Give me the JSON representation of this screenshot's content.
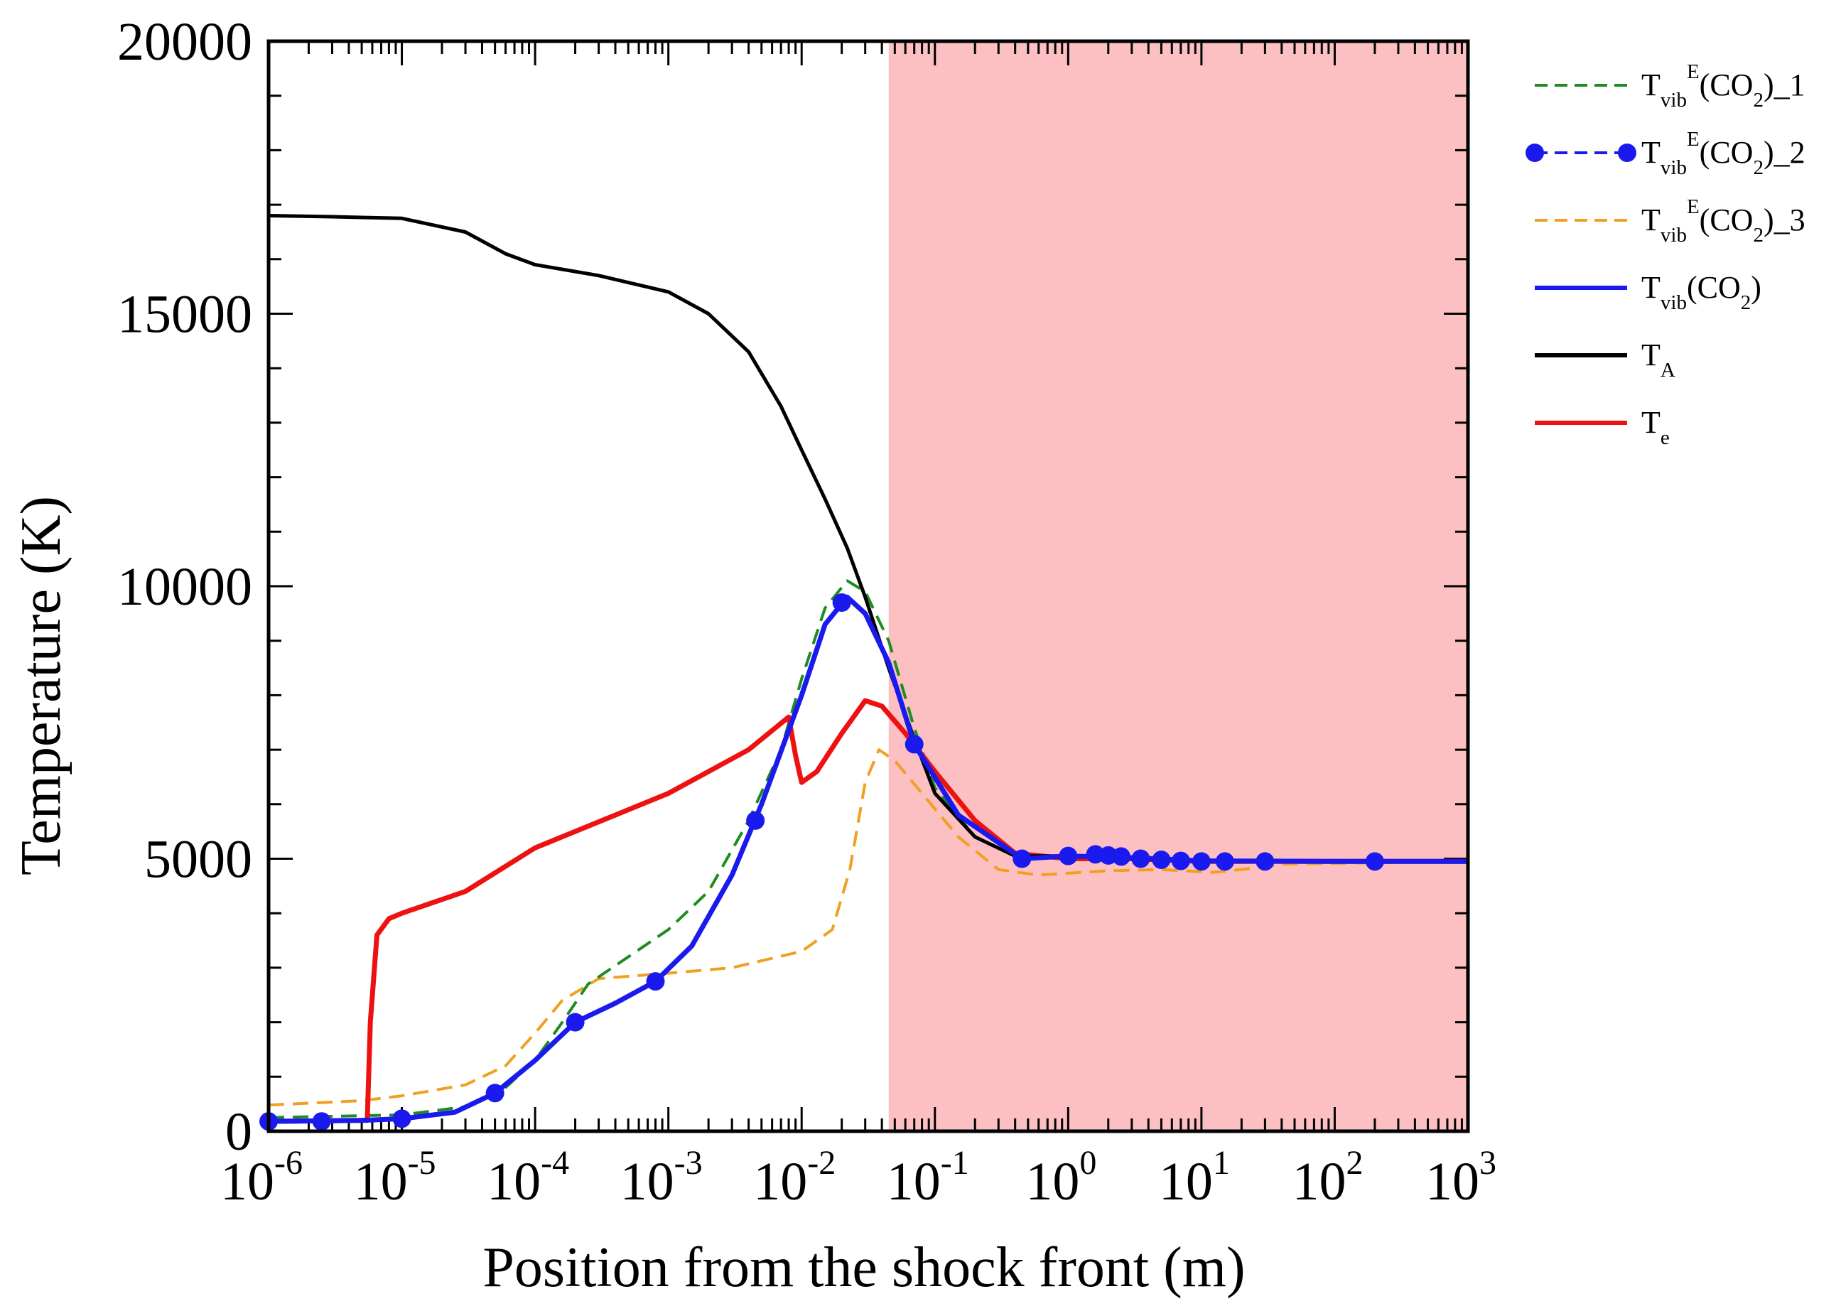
{
  "chart_data": {
    "type": "line",
    "title": "",
    "xlabel": "Position from the shock front (m)",
    "ylabel": "Temperature (K)",
    "xscale": "log",
    "xlim": [
      1e-06,
      1000
    ],
    "ylim": [
      0,
      20000
    ],
    "x_tick_labels": [
      {
        "base": "10",
        "exp": "-6"
      },
      {
        "base": "10",
        "exp": "-5"
      },
      {
        "base": "10",
        "exp": "-4"
      },
      {
        "base": "10",
        "exp": "-3"
      },
      {
        "base": "10",
        "exp": "-2"
      },
      {
        "base": "10",
        "exp": "-1"
      },
      {
        "base": "10",
        "exp": "0"
      },
      {
        "base": "10",
        "exp": "1"
      },
      {
        "base": "10",
        "exp": "2"
      },
      {
        "base": "10",
        "exp": "3"
      }
    ],
    "y_tick_labels": [
      "0",
      "5000",
      "10000",
      "15000",
      "20000"
    ],
    "shaded_region": {
      "x_from": 0.045,
      "x_to": 1000,
      "color": "#fcc0c2"
    },
    "legend_position": "right, outside plot",
    "series": [
      {
        "id": "tvibE1",
        "name": "T_vib^E(CO2)_1",
        "legend": {
          "main": "T",
          "sub": "vib",
          "sup": "E",
          "rest": [
            {
              "t": "(CO"
            },
            {
              "t": "2",
              "sub": true
            },
            {
              "t": ")_1"
            }
          ]
        },
        "color": "#1e8c1e",
        "style": "dashed",
        "markers": false,
        "points": [
          [
            1e-06,
            250
          ],
          [
            1e-05,
            300
          ],
          [
            3e-05,
            450
          ],
          [
            6e-05,
            800
          ],
          [
            0.0001,
            1300
          ],
          [
            0.00016,
            2000
          ],
          [
            0.00025,
            2700
          ],
          [
            0.0005,
            3200
          ],
          [
            0.001,
            3700
          ],
          [
            0.002,
            4400
          ],
          [
            0.004,
            5700
          ],
          [
            0.007,
            7000
          ],
          [
            0.01,
            8300
          ],
          [
            0.015,
            9600
          ],
          [
            0.022,
            10100
          ],
          [
            0.03,
            9900
          ],
          [
            0.045,
            9000
          ],
          [
            0.07,
            7400
          ],
          [
            0.1,
            6300
          ],
          [
            0.2,
            5400
          ],
          [
            0.4,
            5050
          ],
          [
            1,
            5050
          ],
          [
            3,
            5000
          ],
          [
            10,
            4980
          ],
          [
            100,
            4950
          ],
          [
            1000,
            4950
          ]
        ]
      },
      {
        "id": "tvibE2",
        "name": "T_vib^E(CO2)_2",
        "legend": {
          "main": "T",
          "sub": "vib",
          "sup": "E",
          "rest": [
            {
              "t": "(CO"
            },
            {
              "t": "2",
              "sub": true
            },
            {
              "t": ")_2"
            }
          ]
        },
        "color": "#1a1aee",
        "style": "dashed",
        "markers": true,
        "points": [
          [
            1e-06,
            180
          ],
          [
            2.5e-06,
            180
          ],
          [
            1e-05,
            230
          ],
          [
            5e-05,
            700
          ],
          [
            0.0002,
            2000
          ],
          [
            0.0008,
            2750
          ],
          [
            0.0045,
            5700
          ],
          [
            0.02,
            9700
          ],
          [
            0.07,
            7100
          ],
          [
            0.45,
            5000
          ],
          [
            1,
            5050
          ],
          [
            1.6,
            5080
          ],
          [
            2,
            5060
          ],
          [
            2.5,
            5040
          ],
          [
            3.5,
            5000
          ],
          [
            5,
            4980
          ],
          [
            7,
            4960
          ],
          [
            10,
            4950
          ],
          [
            15,
            4950
          ],
          [
            30,
            4950
          ],
          [
            200,
            4950
          ]
        ]
      },
      {
        "id": "tvibE3",
        "name": "T_vib^E(CO2)_3",
        "legend": {
          "main": "T",
          "sub": "vib",
          "sup": "E",
          "rest": [
            {
              "t": "(CO"
            },
            {
              "t": "2",
              "sub": true
            },
            {
              "t": ")_3"
            }
          ]
        },
        "color": "#f0a020",
        "style": "dashed",
        "markers": false,
        "points": [
          [
            1e-06,
            480
          ],
          [
            5e-06,
            560
          ],
          [
            1e-05,
            650
          ],
          [
            3e-05,
            850
          ],
          [
            6e-05,
            1200
          ],
          [
            0.0001,
            1800
          ],
          [
            0.00016,
            2400
          ],
          [
            0.0003,
            2800
          ],
          [
            0.001,
            2900
          ],
          [
            0.003,
            3000
          ],
          [
            0.01,
            3300
          ],
          [
            0.017,
            3700
          ],
          [
            0.023,
            4800
          ],
          [
            0.03,
            6400
          ],
          [
            0.038,
            7000
          ],
          [
            0.05,
            6800
          ],
          [
            0.08,
            6200
          ],
          [
            0.15,
            5400
          ],
          [
            0.3,
            4800
          ],
          [
            0.6,
            4700
          ],
          [
            2,
            4780
          ],
          [
            5,
            4800
          ],
          [
            12,
            4750
          ],
          [
            20,
            4800
          ],
          [
            40,
            4900
          ],
          [
            1000,
            4950
          ]
        ]
      },
      {
        "id": "tvib",
        "name": "T_vib(CO2)",
        "legend": {
          "main": "T",
          "sub": "vib",
          "sup": "",
          "rest": [
            {
              "t": "(CO"
            },
            {
              "t": "2",
              "sub": true
            },
            {
              "t": ")"
            }
          ]
        },
        "color": "#1a1aee",
        "style": "solid",
        "markers": false,
        "points": [
          [
            1e-06,
            180
          ],
          [
            5e-06,
            200
          ],
          [
            1e-05,
            230
          ],
          [
            2.5e-05,
            350
          ],
          [
            5e-05,
            700
          ],
          [
            0.0001,
            1300
          ],
          [
            0.0002,
            2000
          ],
          [
            0.0004,
            2350
          ],
          [
            0.0008,
            2750
          ],
          [
            0.0015,
            3400
          ],
          [
            0.003,
            4700
          ],
          [
            0.005,
            6000
          ],
          [
            0.01,
            8000
          ],
          [
            0.015,
            9300
          ],
          [
            0.022,
            9800
          ],
          [
            0.03,
            9500
          ],
          [
            0.045,
            8600
          ],
          [
            0.07,
            7100
          ],
          [
            0.15,
            5800
          ],
          [
            0.45,
            5000
          ],
          [
            1,
            5050
          ],
          [
            3,
            5020
          ],
          [
            10,
            4960
          ],
          [
            100,
            4950
          ],
          [
            1000,
            4950
          ]
        ]
      },
      {
        "id": "ta",
        "name": "T_A",
        "legend": {
          "main": "T",
          "sub": "A",
          "sup": "",
          "rest": []
        },
        "color": "#000000",
        "style": "solid",
        "markers": false,
        "points": [
          [
            1e-06,
            16800
          ],
          [
            3e-06,
            16780
          ],
          [
            1e-05,
            16750
          ],
          [
            3e-05,
            16500
          ],
          [
            6e-05,
            16100
          ],
          [
            0.0001,
            15900
          ],
          [
            0.0003,
            15700
          ],
          [
            0.001,
            15400
          ],
          [
            0.002,
            15000
          ],
          [
            0.004,
            14300
          ],
          [
            0.007,
            13300
          ],
          [
            0.01,
            12500
          ],
          [
            0.015,
            11600
          ],
          [
            0.022,
            10700
          ],
          [
            0.03,
            9800
          ],
          [
            0.045,
            8500
          ],
          [
            0.07,
            7200
          ],
          [
            0.1,
            6200
          ],
          [
            0.2,
            5400
          ],
          [
            0.4,
            5050
          ],
          [
            1,
            5050
          ],
          [
            3,
            5000
          ],
          [
            10,
            4950
          ],
          [
            1000,
            4950
          ]
        ]
      },
      {
        "id": "te",
        "name": "T_e",
        "legend": {
          "main": "T",
          "sub": "e",
          "sup": "",
          "rest": []
        },
        "color": "#ee1111",
        "style": "solid",
        "markers": false,
        "points": [
          [
            1e-06,
            180
          ],
          [
            5.5e-06,
            200
          ],
          [
            5.8e-06,
            2000
          ],
          [
            6.5e-06,
            3600
          ],
          [
            8e-06,
            3900
          ],
          [
            1e-05,
            4000
          ],
          [
            3e-05,
            4400
          ],
          [
            0.0001,
            5200
          ],
          [
            0.001,
            6200
          ],
          [
            0.004,
            7000
          ],
          [
            0.008,
            7600
          ],
          [
            0.009,
            6900
          ],
          [
            0.01,
            6400
          ],
          [
            0.013,
            6600
          ],
          [
            0.02,
            7300
          ],
          [
            0.03,
            7900
          ],
          [
            0.04,
            7800
          ],
          [
            0.06,
            7300
          ],
          [
            0.1,
            6600
          ],
          [
            0.2,
            5700
          ],
          [
            0.4,
            5100
          ],
          [
            1,
            5000
          ],
          [
            3,
            5000
          ],
          [
            10,
            4950
          ],
          [
            1000,
            4950
          ]
        ]
      }
    ]
  }
}
